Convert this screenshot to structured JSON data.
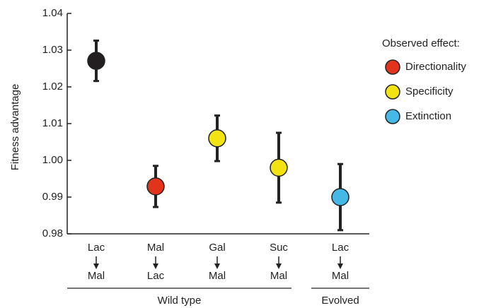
{
  "chart_data": {
    "type": "dot-errorbar",
    "ylabel": "Fitness advantage",
    "ylim": [
      0.98,
      1.04
    ],
    "yticks": [
      0.98,
      0.99,
      {
        "value": 1,
        "label": "1.00"
      },
      1.01,
      1.02,
      1.03,
      1.04
    ],
    "groups": [
      {
        "label": "Wild type",
        "categories": [
          {
            "from": "Lac",
            "to": "Mal"
          },
          {
            "from": "Mal",
            "to": "Lac"
          },
          {
            "from": "Gal",
            "to": "Mal"
          },
          {
            "from": "Suc",
            "to": "Mal"
          }
        ]
      },
      {
        "label": "Evolved",
        "categories": [
          {
            "from": "Lac",
            "to": "Mal"
          }
        ]
      }
    ],
    "values": [
      1.0271,
      0.9929,
      1.006,
      0.998,
      0.99
    ],
    "errors": [
      0.0055,
      0.0056,
      0.0062,
      0.0095,
      0.009
    ],
    "colors": [
      "#231f20",
      "#e2341d",
      "#f4e312",
      "#f4e312",
      "#45b8e5"
    ],
    "legend": {
      "title": "Observed effect:",
      "entries": [
        {
          "name": "Directionality",
          "color": "#e2341d"
        },
        {
          "name": "Specificity",
          "color": "#f4e312"
        },
        {
          "name": "Extinction",
          "color": "#45b8e5"
        }
      ]
    }
  }
}
